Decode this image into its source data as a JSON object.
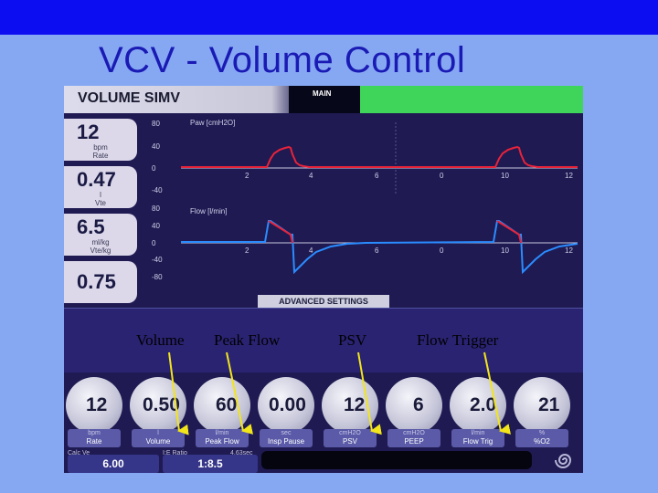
{
  "slide": {
    "title": "VCV - Volume Control"
  },
  "header": {
    "mode": "VOLUME SIMV",
    "main_label": "MAIN"
  },
  "left_boxes": [
    {
      "value": "12",
      "unit1": "bpm",
      "unit2": "Rate"
    },
    {
      "value": "0.47",
      "unit1": "l",
      "unit2": "Vte"
    },
    {
      "value": "6.5",
      "unit1": "ml/kg",
      "unit2": "Vte/kg"
    },
    {
      "value": "0.75",
      "unit1": "",
      "unit2": ""
    }
  ],
  "graphs": {
    "paw_label": "Paw [cmH2O]",
    "flow_label": "Flow [l/min]",
    "paw_y_ticks": [
      "80",
      "40",
      "0",
      "-40"
    ],
    "flow_y_ticks": [
      "80",
      "40",
      "0",
      "-40",
      "-80"
    ],
    "x_ticks": [
      "2",
      "4",
      "6",
      "0",
      "10",
      "12"
    ]
  },
  "advanced": {
    "label": "ADVANCED SETTINGS"
  },
  "annotations": [
    {
      "text": "Volume"
    },
    {
      "text": "Peak Flow"
    },
    {
      "text": "PSV"
    },
    {
      "text": "Flow Trigger"
    }
  ],
  "knobs": [
    {
      "value": "12",
      "unit": "bpm",
      "name": "Rate"
    },
    {
      "value": "0.50",
      "unit": "l",
      "name": "Volume"
    },
    {
      "value": "60",
      "unit": "l/min",
      "name": "Peak Flow"
    },
    {
      "value": "0.00",
      "unit": "sec",
      "name": "Insp Pause"
    },
    {
      "value": "12",
      "unit": "cmH2O",
      "name": "PSV"
    },
    {
      "value": "6",
      "unit": "cmH2O",
      "name": "PEEP"
    },
    {
      "value": "2.0",
      "unit": "l/min",
      "name": "Flow Trig"
    },
    {
      "value": "21",
      "unit": "%",
      "name": "%O2"
    }
  ],
  "bottom": {
    "left_label": "Calc Ve",
    "left_value": "6.00",
    "mid_label1": "I:E Ratio",
    "mid_label2": "4.63sec",
    "mid_value": "1:8.5"
  },
  "colors": {
    "background": "#86a8f3",
    "top_bar": "#0d0df2",
    "title": "#1a1ab4",
    "panel": "#1f1a52",
    "status_green": "#3fd45a",
    "paw_trace": "#e8233a",
    "flow_trace": "#2a8cff",
    "arrow": "#f2e51a"
  }
}
